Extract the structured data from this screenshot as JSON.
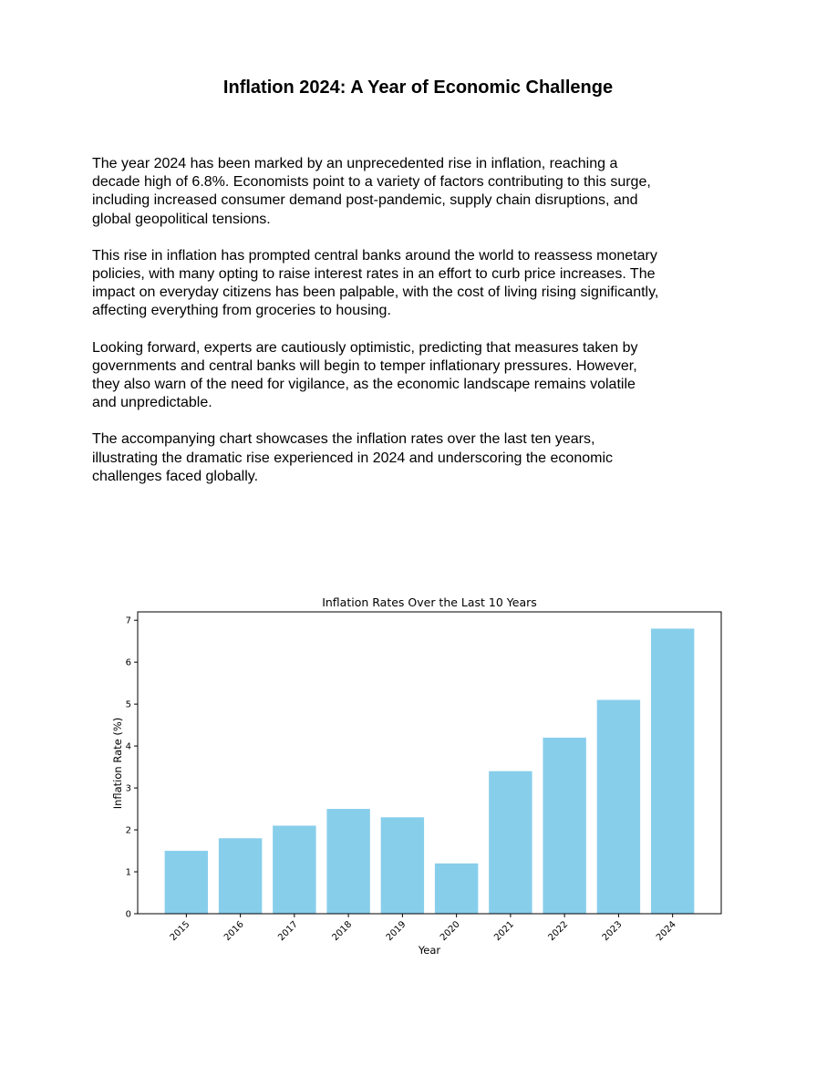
{
  "document": {
    "title": "Inflation 2024: A Year of Economic Challenge",
    "paragraphs": [
      "The year 2024 has been marked by an unprecedented rise in inflation, reaching a decade high of 6.8%. Economists point to a variety of factors contributing to this surge, including increased consumer demand post-pandemic, supply chain disruptions, and global geopolitical tensions.",
      "This rise in inflation has prompted central banks around the world to reassess monetary policies, with many opting to raise interest rates in an effort to curb price increases. The impact on everyday citizens has been palpable, with the cost of living rising significantly, affecting everything from groceries to housing.",
      "Looking forward, experts are cautiously optimistic, predicting that measures taken by governments and central banks will begin to temper inflationary pressures. However, they also warn of the need for vigilance, as the economic landscape remains volatile and unpredictable.",
      "The accompanying chart showcases the inflation rates over the last ten years, illustrating the dramatic rise experienced in 2024 and underscoring the economic challenges faced globally."
    ]
  },
  "chart_data": {
    "type": "bar",
    "title": "Inflation Rates Over the Last 10 Years",
    "xlabel": "Year",
    "ylabel": "Inflation Rate (%)",
    "categories": [
      "2015",
      "2016",
      "2017",
      "2018",
      "2019",
      "2020",
      "2021",
      "2022",
      "2023",
      "2024"
    ],
    "values": [
      1.5,
      1.8,
      2.1,
      2.5,
      2.3,
      1.2,
      3.4,
      4.2,
      5.1,
      6.8
    ],
    "ylim": [
      0,
      7.2
    ],
    "yticks": [
      "0",
      "1",
      "2",
      "3",
      "4",
      "5",
      "6",
      "7"
    ],
    "bar_color": "#87ceeb",
    "grid": false,
    "legend": false
  }
}
